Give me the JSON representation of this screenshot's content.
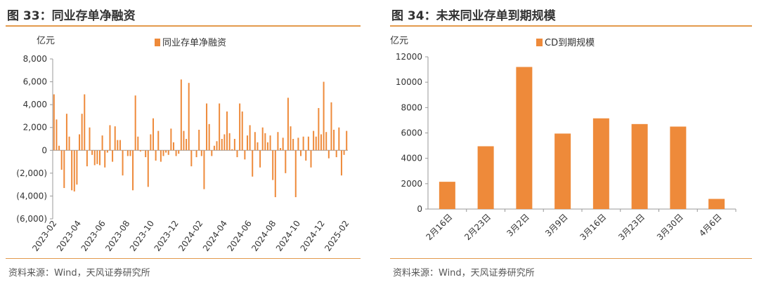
{
  "colors": {
    "bar": "#ee8a3a",
    "accent_rule": "#e39a4c",
    "axis": "#999999",
    "text": "#333333"
  },
  "left": {
    "title": "图 33：同业存单净融资",
    "source": "资料来源：Wind，天风证券研究所"
  },
  "right": {
    "title": "图 34：未来同业存单到期规模",
    "source": "资料来源：Wind，天风证券研究所"
  },
  "chart_data": [
    {
      "type": "bar",
      "title": "",
      "ylabel": "亿元",
      "legend": {
        "entries": [
          "同业存单净融资"
        ],
        "placement": "top-center"
      },
      "ylim": [
        -6000,
        8000
      ],
      "y_ticks": [
        8000,
        6000,
        4000,
        2000,
        0,
        -2000,
        -4000,
        -6000
      ],
      "y_tick_labels": [
        "8,000",
        "6,000",
        "4,000",
        "2,000",
        "0",
        "(2,000)",
        "(4,000)",
        "(6,000)"
      ],
      "x_tick_labels": [
        "2023-02",
        "2023-04",
        "2023-06",
        "2023-08",
        "2023-10",
        "2023-12",
        "2024-02",
        "2024-04",
        "2024-06",
        "2024-08",
        "2024-10",
        "2024-12",
        "2025-02"
      ],
      "grid": false,
      "series": [
        {
          "name": "同业存单净融资",
          "values": [
            4900,
            2700,
            400,
            -1700,
            -3300,
            3200,
            1200,
            -3500,
            -3600,
            -3000,
            1400,
            3200,
            4900,
            -1400,
            2000,
            -400,
            -1300,
            -1200,
            -1300,
            1300,
            -1500,
            -200,
            2200,
            -1000,
            2100,
            900,
            900,
            -2200,
            0,
            -500,
            -500,
            -3500,
            4800,
            1200,
            -100,
            0,
            -600,
            -3200,
            1400,
            2800,
            -900,
            1700,
            -1000,
            -500,
            -200,
            -400,
            1900,
            700,
            -500,
            -300,
            6200,
            1700,
            1000,
            5900,
            -1400,
            0,
            -600,
            1800,
            -500,
            -3400,
            4100,
            2300,
            -500,
            400,
            800,
            4100,
            1000,
            1400,
            3400,
            1500,
            100,
            1000,
            -600,
            4100,
            3400,
            -800,
            1300,
            2200,
            -2300,
            1600,
            700,
            -1500,
            2000,
            1500,
            700,
            1300,
            -2600,
            -4100,
            1600,
            200,
            1100,
            -2000,
            4600,
            2100,
            1000,
            -4100,
            1100,
            -500,
            1200,
            -900,
            1200,
            -1500,
            1700,
            1200,
            3700,
            1400,
            6000,
            1600,
            -700,
            4200,
            1800,
            -600,
            2000,
            -2200,
            -400,
            1700
          ],
          "length_note": ""
        }
      ]
    },
    {
      "type": "bar",
      "title": "",
      "ylabel": "亿元",
      "legend": {
        "entries": [
          "CD到期规模"
        ],
        "placement": "top-center"
      },
      "ylim": [
        0,
        12000
      ],
      "y_ticks": [
        0,
        2000,
        4000,
        6000,
        8000,
        10000,
        12000
      ],
      "categories": [
        "2月16日",
        "2月23日",
        "3月2日",
        "3月9日",
        "3月16日",
        "3月23日",
        "3月30日",
        "4月6日"
      ],
      "grid": false,
      "series": [
        {
          "name": "CD到期规模",
          "values": [
            2150,
            4950,
            11200,
            5950,
            7150,
            6700,
            6500,
            800
          ]
        }
      ]
    }
  ]
}
